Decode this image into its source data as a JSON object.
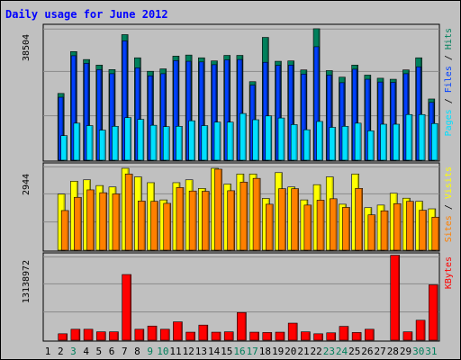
{
  "title": "Daily usage for June 2012",
  "colors": {
    "title": "#0000ff",
    "hits": "#00805c",
    "files": "#0040ff",
    "pages": "#00e0ff",
    "visits": "#ffff00",
    "sites": "#ff8000",
    "kbytes": "#ff0000",
    "weekday_label": "#000000",
    "weekend_label": "#00805c",
    "panel_bg": "#c0c0c0",
    "frame_bg": "#c0c0c0"
  },
  "chart_data": [
    {
      "type": "bar",
      "panel": "hits-files-pages",
      "max_label": "38504",
      "ylim": [
        0,
        38504
      ],
      "grid": true,
      "legend": [
        "Pages",
        "Files",
        "Hits"
      ],
      "legend_position": "right",
      "categories": [
        "1",
        "2",
        "3",
        "4",
        "5",
        "6",
        "7",
        "8",
        "9",
        "10",
        "11",
        "12",
        "13",
        "14",
        "15",
        "16",
        "17",
        "18",
        "19",
        "20",
        "21",
        "22",
        "23",
        "24",
        "25",
        "26",
        "27",
        "28",
        "29",
        "30",
        "31"
      ],
      "series": [
        {
          "name": "Hits",
          "values": [
            0,
            19300,
            31400,
            29100,
            27500,
            26200,
            36300,
            29600,
            25700,
            26400,
            30100,
            30400,
            29600,
            28700,
            30300,
            30300,
            22700,
            35500,
            28600,
            28700,
            26100,
            38000,
            25900,
            24000,
            27500,
            24600,
            23700,
            23400,
            26100,
            29600,
            17700
          ]
        },
        {
          "name": "Files",
          "values": [
            0,
            18200,
            30200,
            28000,
            26200,
            25000,
            34500,
            26700,
            24400,
            25000,
            28800,
            28600,
            28400,
            27600,
            29000,
            29100,
            21700,
            28300,
            27400,
            27500,
            24900,
            32800,
            24600,
            22400,
            26300,
            23400,
            22600,
            22500,
            25000,
            27000,
            16700
          ]
        },
        {
          "name": "Pages",
          "values": [
            0,
            7100,
            10700,
            10000,
            8700,
            9800,
            12300,
            11800,
            10100,
            9700,
            9800,
            11400,
            10000,
            11000,
            11000,
            13500,
            11700,
            12800,
            12200,
            10300,
            8800,
            11200,
            9500,
            9800,
            10700,
            8500,
            10400,
            10400,
            13200,
            13200,
            10600
          ]
        }
      ]
    },
    {
      "type": "bar",
      "panel": "visits-sites",
      "max_label": "2944",
      "ylim": [
        0,
        2944
      ],
      "grid": true,
      "legend": [
        "Sites",
        "Visits"
      ],
      "legend_position": "right",
      "categories": [
        "1",
        "2",
        "3",
        "4",
        "5",
        "6",
        "7",
        "8",
        "9",
        "10",
        "11",
        "12",
        "13",
        "14",
        "15",
        "16",
        "17",
        "18",
        "19",
        "20",
        "21",
        "22",
        "23",
        "24",
        "25",
        "26",
        "27",
        "28",
        "29",
        "30",
        "31"
      ],
      "series": [
        {
          "name": "Visits",
          "values": [
            0,
            1950,
            2400,
            2450,
            2250,
            2200,
            2850,
            2550,
            2350,
            1750,
            2350,
            2450,
            2150,
            2850,
            2300,
            2650,
            2650,
            1800,
            2700,
            2200,
            1750,
            2280,
            2550,
            1600,
            2650,
            1480,
            1570,
            1980,
            1810,
            1700,
            1440
          ]
        },
        {
          "name": "Sites",
          "values": [
            0,
            1380,
            1840,
            2100,
            2000,
            1960,
            2650,
            1710,
            1700,
            1630,
            2180,
            2060,
            2050,
            2820,
            2070,
            2370,
            2500,
            1600,
            2140,
            2140,
            1570,
            1740,
            1790,
            1490,
            2150,
            1230,
            1370,
            1620,
            1700,
            1390,
            1150
          ]
        }
      ]
    },
    {
      "type": "bar",
      "panel": "kbytes",
      "max_label": "13138972",
      "ylim": [
        0,
        13138972
      ],
      "grid": true,
      "legend": [
        "KBytes"
      ],
      "legend_position": "right",
      "categories": [
        "1",
        "2",
        "3",
        "4",
        "5",
        "6",
        "7",
        "8",
        "9",
        "10",
        "11",
        "12",
        "13",
        "14",
        "15",
        "16",
        "17",
        "18",
        "19",
        "20",
        "21",
        "22",
        "23",
        "24",
        "25",
        "26",
        "27",
        "28",
        "29",
        "30",
        "31"
      ],
      "series": [
        {
          "name": "KBytes",
          "values": [
            0,
            1000000,
            1700000,
            1700000,
            1300000,
            1300000,
            10200000,
            1700000,
            2200000,
            1700000,
            2850000,
            1250000,
            2350000,
            1250000,
            1300000,
            4300000,
            1250000,
            1200000,
            1250000,
            2650000,
            1300000,
            1000000,
            1150000,
            2150000,
            1200000,
            1700000,
            0,
            13200000,
            1300000,
            3100000,
            8600000
          ]
        }
      ]
    }
  ],
  "x_labels": [
    {
      "text": "1",
      "weekend": false
    },
    {
      "text": "2",
      "weekend": false
    },
    {
      "text": "3",
      "weekend": true
    },
    {
      "text": "4",
      "weekend": false
    },
    {
      "text": "5",
      "weekend": false
    },
    {
      "text": "6",
      "weekend": false
    },
    {
      "text": "7",
      "weekend": false
    },
    {
      "text": "8",
      "weekend": false
    },
    {
      "text": "9",
      "weekend": true
    },
    {
      "text": "10",
      "weekend": true
    },
    {
      "text": "11",
      "weekend": false
    },
    {
      "text": "12",
      "weekend": false
    },
    {
      "text": "13",
      "weekend": false
    },
    {
      "text": "14",
      "weekend": false
    },
    {
      "text": "15",
      "weekend": false
    },
    {
      "text": "16",
      "weekend": true
    },
    {
      "text": "17",
      "weekend": true
    },
    {
      "text": "18",
      "weekend": false
    },
    {
      "text": "19",
      "weekend": false
    },
    {
      "text": "20",
      "weekend": false
    },
    {
      "text": "21",
      "weekend": false
    },
    {
      "text": "22",
      "weekend": false
    },
    {
      "text": "23",
      "weekend": true
    },
    {
      "text": "24",
      "weekend": true
    },
    {
      "text": "25",
      "weekend": false
    },
    {
      "text": "26",
      "weekend": false
    },
    {
      "text": "27",
      "weekend": false
    },
    {
      "text": "28",
      "weekend": false
    },
    {
      "text": "29",
      "weekend": false
    },
    {
      "text": "30",
      "weekend": true
    },
    {
      "text": "31",
      "weekend": true
    }
  ]
}
